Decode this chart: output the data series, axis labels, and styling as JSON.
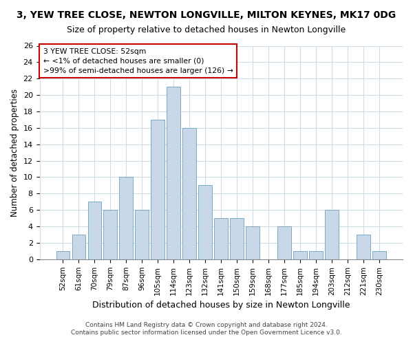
{
  "title": "3, YEW TREE CLOSE, NEWTON LONGVILLE, MILTON KEYNES, MK17 0DG",
  "subtitle": "Size of property relative to detached houses in Newton Longville",
  "xlabel": "Distribution of detached houses by size in Newton Longville",
  "ylabel": "Number of detached properties",
  "bar_color": "#c8d8e8",
  "bar_edge_color": "#7aaac8",
  "categories": [
    "52sqm",
    "61sqm",
    "70sqm",
    "79sqm",
    "87sqm",
    "96sqm",
    "105sqm",
    "114sqm",
    "123sqm",
    "132sqm",
    "141sqm",
    "150sqm",
    "159sqm",
    "168sqm",
    "177sqm",
    "185sqm",
    "194sqm",
    "203sqm",
    "212sqm",
    "221sqm",
    "230sqm"
  ],
  "values": [
    1,
    3,
    7,
    6,
    10,
    6,
    17,
    21,
    16,
    9,
    5,
    5,
    4,
    0,
    4,
    1,
    1,
    6,
    0,
    3,
    1
  ],
  "ylim": [
    0,
    26
  ],
  "yticks": [
    0,
    2,
    4,
    6,
    8,
    10,
    12,
    14,
    16,
    18,
    20,
    22,
    24,
    26
  ],
  "annotation_title": "3 YEW TREE CLOSE: 52sqm",
  "annotation_line1": "← <1% of detached houses are smaller (0)",
  "annotation_line2": ">99% of semi-detached houses are larger (126) →",
  "annotation_box_color": "#ffffff",
  "annotation_box_edge": "#cc0000",
  "footer_line1": "Contains HM Land Registry data © Crown copyright and database right 2024.",
  "footer_line2": "Contains public sector information licensed under the Open Government Licence v3.0.",
  "background_color": "#ffffff",
  "plot_bg_color": "#ffffff",
  "grid_color": "#d0dce8",
  "title_fontsize": 10,
  "subtitle_fontsize": 9
}
